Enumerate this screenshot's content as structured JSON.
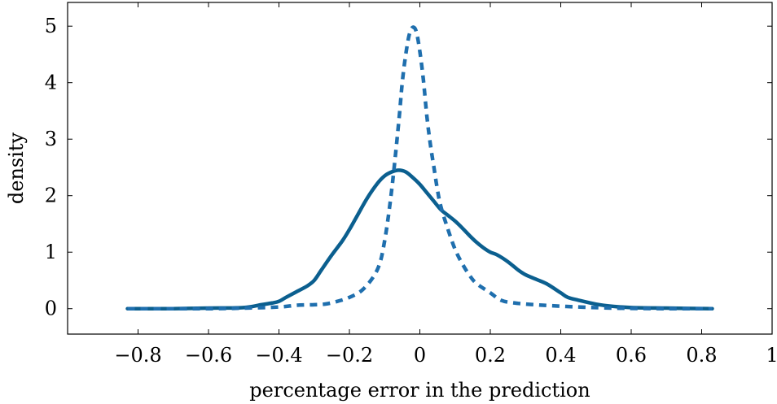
{
  "chart_data": {
    "type": "line",
    "xlabel": "percentage error in the prediction",
    "ylabel": "density",
    "xlim": [
      -1.0,
      1.0
    ],
    "ylim": [
      -0.45,
      5.42
    ],
    "xticks": [
      -0.8,
      -0.6,
      -0.4,
      -0.2,
      0,
      0.2,
      0.4,
      0.6,
      0.8,
      1
    ],
    "xtick_labels": [
      "−0.8",
      "−0.6",
      "−0.4",
      "−0.2",
      "0",
      "0.2",
      "0.4",
      "0.6",
      "0.8",
      "1"
    ],
    "yticks": [
      0,
      1,
      2,
      3,
      4,
      5
    ],
    "ytick_labels": [
      "0",
      "1",
      "2",
      "3",
      "4",
      "5"
    ],
    "grid": false,
    "legend": "none",
    "series": [
      {
        "style": "solid",
        "color": "#0b5f8f",
        "x": [
          -0.83,
          -0.7,
          -0.6,
          -0.5,
          -0.45,
          -0.42,
          -0.4,
          -0.38,
          -0.35,
          -0.32,
          -0.3,
          -0.28,
          -0.25,
          -0.22,
          -0.2,
          -0.18,
          -0.15,
          -0.12,
          -0.1,
          -0.08,
          -0.06,
          -0.04,
          -0.02,
          0,
          0.02,
          0.04,
          0.06,
          0.08,
          0.1,
          0.12,
          0.14,
          0.16,
          0.18,
          0.2,
          0.22,
          0.25,
          0.28,
          0.3,
          0.33,
          0.36,
          0.4,
          0.42,
          0.45,
          0.5,
          0.55,
          0.6,
          0.7,
          0.83
        ],
        "y": [
          0,
          0,
          0.01,
          0.02,
          0.07,
          0.1,
          0.13,
          0.2,
          0.3,
          0.4,
          0.5,
          0.68,
          0.95,
          1.2,
          1.4,
          1.62,
          1.95,
          2.22,
          2.35,
          2.42,
          2.45,
          2.42,
          2.32,
          2.2,
          2.05,
          1.9,
          1.75,
          1.65,
          1.55,
          1.43,
          1.3,
          1.18,
          1.08,
          1.0,
          0.95,
          0.83,
          0.68,
          0.6,
          0.52,
          0.44,
          0.28,
          0.2,
          0.15,
          0.08,
          0.04,
          0.02,
          0.01,
          0
        ]
      },
      {
        "style": "dashed",
        "color": "#1f6fae",
        "x": [
          -0.83,
          -0.6,
          -0.5,
          -0.4,
          -0.35,
          -0.3,
          -0.27,
          -0.24,
          -0.2,
          -0.16,
          -0.12,
          -0.1,
          -0.08,
          -0.06,
          -0.05,
          -0.04,
          -0.03,
          -0.02,
          -0.01,
          0,
          0.01,
          0.02,
          0.03,
          0.04,
          0.05,
          0.06,
          0.08,
          0.1,
          0.12,
          0.14,
          0.16,
          0.2,
          0.23,
          0.27,
          0.35,
          0.45,
          0.55,
          0.7,
          0.83
        ],
        "y": [
          0,
          0,
          0.01,
          0.03,
          0.06,
          0.07,
          0.08,
          0.12,
          0.2,
          0.35,
          0.7,
          1.2,
          2.1,
          3.3,
          4.0,
          4.5,
          4.85,
          4.98,
          4.9,
          4.55,
          4.05,
          3.4,
          2.9,
          2.5,
          2.1,
          1.8,
          1.4,
          1.05,
          0.8,
          0.6,
          0.45,
          0.28,
          0.15,
          0.1,
          0.06,
          0.03,
          0.01,
          0,
          0
        ]
      }
    ]
  }
}
